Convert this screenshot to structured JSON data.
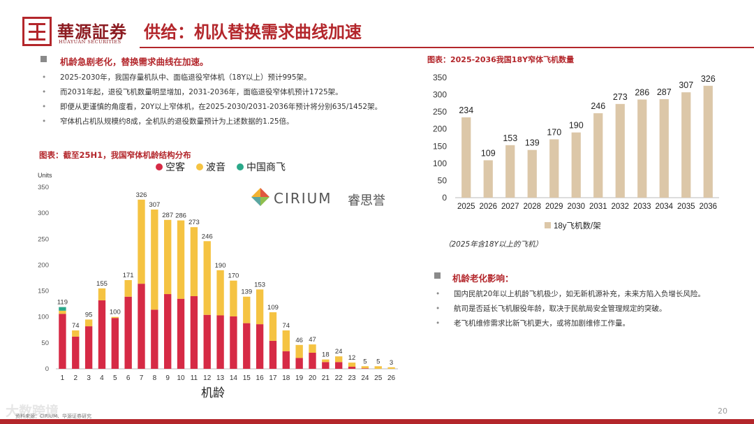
{
  "header": {
    "brand_cn": "華源証券",
    "brand_en": "HUAYUAN SECURITIES",
    "title": "供给：机队替换需求曲线加速"
  },
  "left": {
    "lead": "机龄急剧老化，替换需求曲线在加速。",
    "bullets": [
      "2025-2030年，我国存量机队中、面临退役窄体机（18Y以上）预计995架。",
      "而2031年起，退役飞机数量明显增加，2031-2036年，面临退役窄体机预计1725架。",
      "即便从更谨慎的角度看，20Y以上窄体机，在2025-2030/2031-2036年预计将分别635/1452架。",
      "窄体机占机队规模约8成，全机队的退役数量预计为上述数据的1.25倍。"
    ],
    "chart_caption": "图表：截至25H1，我国窄体机龄结构分布",
    "logo_text": "CIRIUM",
    "logo_cn": "睿思誉"
  },
  "right": {
    "chart_caption": "图表：2025-2036我国18Y窄体飞机数量",
    "chart_note": "（2025年含18Y以上的飞机）",
    "impact_lead": "机龄老化影响：",
    "impact_bullets": [
      "国内民航20年以上机龄飞机极少，如无新机源补充，未来方陷入负增长风险。",
      "航司是否延长飞机服役年龄，取决于民航局安全管理规定的突破。",
      "老飞机维修需求比新飞机更大，或将加剧维修工作量。"
    ]
  },
  "footer": {
    "page": "20",
    "watermark": "大数跨境",
    "source": "资料来源：CIRIUM、华源证券研究"
  },
  "colors": {
    "brand": "#b3262b",
    "airbus": "#d62a45",
    "boeing": "#f5c342",
    "comac": "#2aa889",
    "bar_right": "#dcc7a8"
  },
  "chart_data": [
    {
      "type": "bar",
      "stacked": true,
      "title": "图表：截至25H1，我国窄体机龄结构分布",
      "ylabel": "Units",
      "xlabel": "机龄",
      "ylim": [
        0,
        350
      ],
      "yticks": [
        0,
        50,
        100,
        150,
        200,
        250,
        300,
        350
      ],
      "categories": [
        "1",
        "2",
        "3",
        "4",
        "5",
        "6",
        "7",
        "8",
        "9",
        "10",
        "11",
        "12",
        "13",
        "14",
        "15",
        "16",
        "17",
        "18",
        "19",
        "20",
        "21",
        "22",
        "23",
        "24",
        "25",
        "26"
      ],
      "totals": [
        119,
        74,
        95,
        155,
        100,
        171,
        326,
        307,
        287,
        286,
        273,
        246,
        190,
        170,
        139,
        153,
        109,
        74,
        46,
        47,
        18,
        24,
        12,
        5,
        5,
        3
      ],
      "legend_position": "top",
      "series": [
        {
          "name": "空客",
          "values": [
            106,
            62,
            82,
            132,
            98,
            139,
            164,
            114,
            144,
            135,
            140,
            104,
            103,
            101,
            88,
            86,
            54,
            34,
            21,
            31,
            13,
            13,
            4,
            1,
            0,
            0
          ]
        },
        {
          "name": "波音",
          "values": [
            6,
            12,
            13,
            23,
            2,
            32,
            162,
            193,
            143,
            151,
            133,
            142,
            87,
            69,
            51,
            67,
            55,
            40,
            25,
            16,
            5,
            11,
            8,
            4,
            5,
            3
          ]
        },
        {
          "name": "中国商飞",
          "values": [
            7,
            0,
            0,
            0,
            0,
            0,
            0,
            0,
            0,
            0,
            0,
            0,
            0,
            0,
            0,
            0,
            0,
            0,
            0,
            0,
            0,
            0,
            0,
            0,
            0,
            0
          ]
        }
      ]
    },
    {
      "type": "bar",
      "title": "图表：2025-2036我国18Y窄体飞机数量",
      "ylim": [
        0,
        350
      ],
      "yticks": [
        0,
        50,
        100,
        150,
        200,
        250,
        300,
        350
      ],
      "categories": [
        "2025",
        "2026",
        "2027",
        "2028",
        "2029",
        "2030",
        "2031",
        "2032",
        "2033",
        "2034",
        "2035",
        "2036"
      ],
      "legend_position": "bottom",
      "series": [
        {
          "name": "18y飞机数/架",
          "values": [
            234,
            109,
            153,
            139,
            170,
            190,
            246,
            273,
            286,
            287,
            307,
            326
          ]
        }
      ]
    }
  ]
}
